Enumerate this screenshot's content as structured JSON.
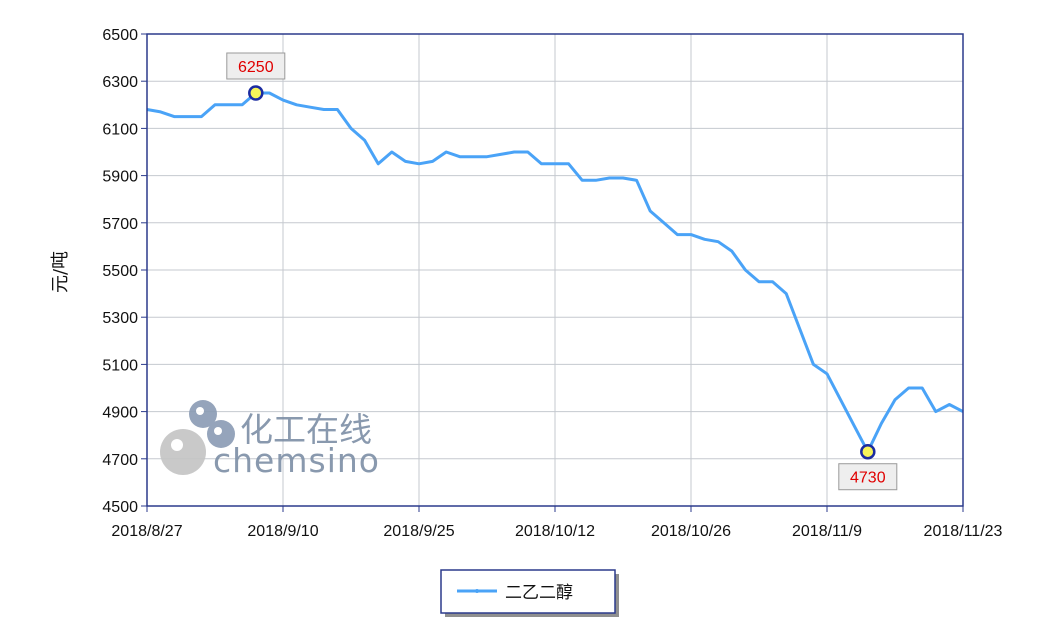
{
  "chart_data": {
    "type": "line",
    "title": "",
    "ylabel": "元/吨",
    "xlabel": "",
    "ylim": [
      4500,
      6500
    ],
    "yticks": [
      4500,
      4700,
      4900,
      5100,
      5300,
      5500,
      5700,
      5900,
      6100,
      6300,
      6500
    ],
    "xtick_labels": [
      "2018/8/27",
      "2018/9/10",
      "2018/9/25",
      "2018/10/12",
      "2018/10/26",
      "2018/11/9",
      "2018/11/23"
    ],
    "grid": true,
    "legend_position": "bottom-center",
    "series": [
      {
        "name": "二乙二醇",
        "color": "#4aa3f7",
        "values": [
          6180,
          6170,
          6150,
          6150,
          6150,
          6200,
          6200,
          6200,
          6250,
          6250,
          6220,
          6200,
          6190,
          6180,
          6180,
          6100,
          6050,
          5950,
          6000,
          5960,
          5950,
          5960,
          6000,
          5980,
          5980,
          5980,
          5990,
          6000,
          6000,
          5950,
          5950,
          5950,
          5880,
          5880,
          5890,
          5890,
          5880,
          5750,
          5700,
          5650,
          5650,
          5630,
          5620,
          5580,
          5500,
          5450,
          5450,
          5400,
          5250,
          5100,
          5060,
          4950,
          4840,
          4730,
          4850,
          4950,
          5000,
          5000,
          4900,
          4930,
          4900
        ]
      }
    ],
    "callouts": [
      {
        "label": "6250",
        "index": 8,
        "value": 6250
      },
      {
        "label": "4730",
        "index": 53,
        "value": 4730
      }
    ]
  },
  "watermark": {
    "cn": "化工在线",
    "en": "chemsino"
  },
  "colors": {
    "line": "#4aa3f7",
    "grid": "#c5c9cf",
    "border": "#2b3a8c",
    "marker_fill": "#f6f35a",
    "marker_stroke": "#1b2ba0",
    "callout_text": "#e00000"
  }
}
